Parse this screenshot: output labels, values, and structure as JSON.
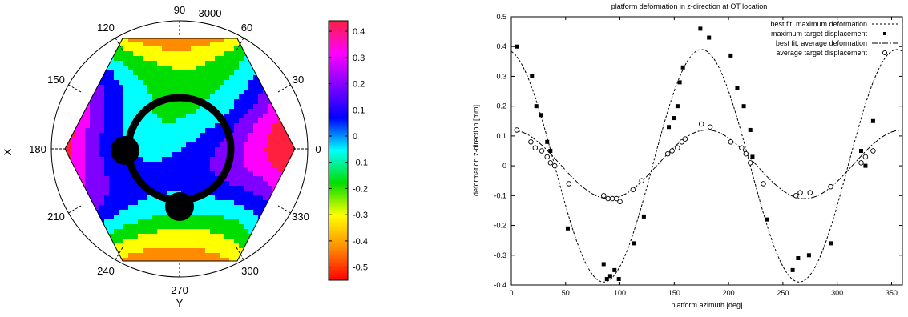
{
  "chart_data": [
    {
      "type": "heatmap",
      "polar_labels": {
        "angles": [
          "90",
          "60",
          "30",
          "0",
          "330",
          "300",
          "270",
          "240",
          "210",
          "180",
          "150",
          "120"
        ],
        "outer_value": "3000",
        "axis_x_label": "X",
        "axis_y_label": "Y"
      },
      "colorbar": {
        "ticks": [
          "0.4",
          "0.3",
          "0.2",
          "0.1",
          "0",
          "-0.1",
          "-0.2",
          "-0.3",
          "-0.4",
          "-0.5"
        ],
        "range": [
          -0.55,
          0.44
        ],
        "colors": [
          "#ff0000",
          "#ff8c00",
          "#ffff00",
          "#00dd00",
          "#00ffff",
          "#0000ff",
          "#8000ff",
          "#ff00ff",
          "#ff2040"
        ]
      },
      "markers": "black ring with two black dots (at about 180 and 270 deg)"
    },
    {
      "type": "scatter",
      "title": "platform deformation in z-direction at OT location",
      "xlabel": "platform azimuth [deg]",
      "ylabel": "deformation z-direction [mm]",
      "xlim": [
        0,
        360
      ],
      "ylim": [
        -0.4,
        0.5
      ],
      "xticks": [
        "0",
        "50",
        "100",
        "150",
        "200",
        "250",
        "300",
        "350"
      ],
      "yticks": [
        "0.5",
        "0.4",
        "0.3",
        "0.2",
        "0.1",
        "0",
        "-0.1",
        "-0.2",
        "-0.3",
        "-0.4"
      ],
      "legend_position": "top-right",
      "series": [
        {
          "name": "best fit, maximum deformation",
          "kind": "fit_line",
          "amplitude": 0.39,
          "phase_deg": 175,
          "offset": 0.0
        },
        {
          "name": "maximum target displacement",
          "kind": "points_filled",
          "points": [
            [
              5,
              0.4
            ],
            [
              19,
              0.3
            ],
            [
              23,
              0.2
            ],
            [
              27,
              0.17
            ],
            [
              33,
              0.08
            ],
            [
              36,
              0.05
            ],
            [
              52,
              -0.21
            ],
            [
              85,
              -0.33
            ],
            [
              88,
              -0.38
            ],
            [
              91,
              -0.37
            ],
            [
              95,
              -0.35
            ],
            [
              99,
              -0.38
            ],
            [
              113,
              -0.26
            ],
            [
              122,
              -0.17
            ],
            [
              145,
              0.13
            ],
            [
              150,
              0.16
            ],
            [
              153,
              0.2
            ],
            [
              155,
              0.28
            ],
            [
              158,
              0.33
            ],
            [
              174,
              0.46
            ],
            [
              182,
              0.43
            ],
            [
              202,
              0.37
            ],
            [
              208,
              0.26
            ],
            [
              214,
              0.2
            ],
            [
              220,
              0.12
            ],
            [
              222,
              0.03
            ],
            [
              235,
              -0.18
            ],
            [
              259,
              -0.35
            ],
            [
              264,
              -0.31
            ],
            [
              274,
              -0.3
            ],
            [
              294,
              -0.26
            ],
            [
              322,
              0.05
            ],
            [
              326,
              0.0
            ],
            [
              333,
              0.15
            ]
          ]
        },
        {
          "name": "best fit, average deformation",
          "kind": "fit_line",
          "amplitude": 0.115,
          "phase_deg": 180,
          "offset": 0.005
        },
        {
          "name": "average target displacement",
          "kind": "points_open",
          "points": [
            [
              5,
              0.12
            ],
            [
              18,
              0.08
            ],
            [
              22,
              0.06
            ],
            [
              28,
              0.05
            ],
            [
              33,
              0.03
            ],
            [
              36,
              0.01
            ],
            [
              40,
              0.0
            ],
            [
              53,
              -0.06
            ],
            [
              85,
              -0.1
            ],
            [
              89,
              -0.11
            ],
            [
              93,
              -0.11
            ],
            [
              97,
              -0.11
            ],
            [
              100,
              -0.12
            ],
            [
              112,
              -0.08
            ],
            [
              120,
              -0.05
            ],
            [
              144,
              0.04
            ],
            [
              148,
              0.05
            ],
            [
              153,
              0.06
            ],
            [
              157,
              0.08
            ],
            [
              160,
              0.09
            ],
            [
              175,
              0.14
            ],
            [
              183,
              0.13
            ],
            [
              202,
              0.08
            ],
            [
              212,
              0.06
            ],
            [
              216,
              0.04
            ],
            [
              220,
              0.01
            ],
            [
              232,
              -0.06
            ],
            [
              262,
              -0.1
            ],
            [
              266,
              -0.09
            ],
            [
              275,
              -0.09
            ],
            [
              294,
              -0.07
            ],
            [
              322,
              0.01
            ],
            [
              326,
              0.03
            ],
            [
              333,
              0.05
            ]
          ]
        }
      ]
    }
  ]
}
